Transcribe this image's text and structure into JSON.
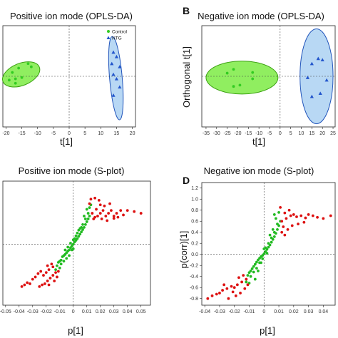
{
  "panel_labels": [
    "B",
    "D"
  ],
  "chart_data": [
    {
      "type": "scatter",
      "title": "Positive ion mode (OPLS-DA)",
      "xlabel": "t[1]",
      "ylabel": "",
      "xlim": [
        -21,
        21
      ],
      "ylim": [
        -8,
        8
      ],
      "xticks": [
        -20,
        -15,
        -10,
        -5,
        0,
        5,
        10,
        15,
        20
      ],
      "legend": {
        "placement": "top-right",
        "entries": [
          "Control",
          "NTG"
        ]
      },
      "ellipses": [
        {
          "series": "Control",
          "cx": -15.2,
          "cy": 0.3,
          "rx": 6.2,
          "ry": 1.75,
          "angle_deg": -22,
          "fill": "#90ee60",
          "stroke": "#3aa010"
        },
        {
          "series": "NTG",
          "cx": 14.8,
          "cy": -0.3,
          "rx": 2.0,
          "ry": 6.6,
          "angle_deg": -5,
          "fill": "#b8d8f4",
          "stroke": "#2255bb"
        }
      ],
      "series": [
        {
          "name": "Control",
          "marker": "circle",
          "color": "#33cc22",
          "points": [
            [
              -13,
              2.0
            ],
            [
              -16,
              1.3
            ],
            [
              -12,
              1.5
            ],
            [
              -18,
              0.6
            ],
            [
              -15,
              -0.2
            ],
            [
              -17,
              -0.4
            ],
            [
              -19,
              -0.6
            ],
            [
              -17,
              -1.1
            ]
          ]
        },
        {
          "name": "NTG",
          "marker": "triangle",
          "color": "#2255cc",
          "points": [
            [
              14,
              3.8
            ],
            [
              15,
              3.1
            ],
            [
              13.5,
              2.0
            ],
            [
              16,
              1.5
            ],
            [
              14,
              0.3
            ],
            [
              15,
              -0.4
            ],
            [
              16,
              -1.7
            ],
            [
              14,
              -3.0
            ]
          ]
        }
      ]
    },
    {
      "type": "scatter",
      "title": "Negative ion mode (OPLS-DA)",
      "xlabel": "t[1]",
      "ylabel": "Orthogonal t[1]",
      "xlim": [
        -37,
        26
      ],
      "ylim": [
        -8,
        8
      ],
      "xticks": [
        -35,
        -30,
        -25,
        -20,
        -15,
        -10,
        -5,
        0,
        5,
        10,
        15,
        20,
        25
      ],
      "ellipses": [
        {
          "series": "Control",
          "cx": -18,
          "cy": -0.2,
          "rx": 17,
          "ry": 2.6,
          "angle_deg": 0,
          "fill": "#90ee60",
          "stroke": "#3aa010"
        },
        {
          "series": "NTG",
          "cx": 17.2,
          "cy": 0,
          "rx": 7.8,
          "ry": 7.5,
          "angle_deg": 0,
          "fill": "#b8d8f4",
          "stroke": "#2255bb"
        }
      ],
      "series": [
        {
          "name": "Control",
          "marker": "circle",
          "color": "#33cc22",
          "points": [
            [
              -22,
              1.1
            ],
            [
              -25,
              0.5
            ],
            [
              -13,
              0.6
            ],
            [
              -13,
              -0.4
            ],
            [
              -19,
              -1.4
            ],
            [
              -22,
              -1.6
            ]
          ]
        },
        {
          "name": "NTG",
          "marker": "triangle",
          "color": "#2255cc",
          "points": [
            [
              18,
              2.8
            ],
            [
              20,
              2.6
            ],
            [
              15,
              2.0
            ],
            [
              13,
              -0.2
            ],
            [
              22,
              -0.6
            ],
            [
              19,
              -2.7
            ],
            [
              15,
              -3.2
            ]
          ]
        }
      ]
    },
    {
      "type": "scatter",
      "title": "Positive ion mode (S-plot)",
      "xlabel": "p[1]",
      "ylabel": "",
      "xlim": [
        -0.052,
        0.057
      ],
      "ylim": [
        -1.08,
        1.12
      ],
      "xticks": [
        -0.05,
        -0.04,
        -0.03,
        -0.02,
        -0.01,
        0,
        0.01,
        0.02,
        0.03,
        0.04,
        0.05
      ],
      "series": [
        {
          "name": "",
          "marker": "circle",
          "color": "#22bb22",
          "points": [
            [
              -0.012,
              -0.38
            ],
            [
              -0.011,
              -0.32
            ],
            [
              -0.01,
              -0.3
            ],
            [
              -0.009,
              -0.28
            ],
            [
              -0.008,
              -0.22
            ],
            [
              -0.007,
              -0.2
            ],
            [
              -0.006,
              -0.18
            ],
            [
              -0.005,
              -0.15
            ],
            [
              -0.004,
              -0.12
            ],
            [
              -0.003,
              -0.1
            ],
            [
              -0.002,
              -0.06
            ],
            [
              -0.001,
              -0.03
            ],
            [
              0,
              0.0
            ],
            [
              0.001,
              0.04
            ],
            [
              0.002,
              0.07
            ],
            [
              0.003,
              0.1
            ],
            [
              0.004,
              0.14
            ],
            [
              0.005,
              0.18
            ],
            [
              0.006,
              0.22
            ],
            [
              0.007,
              0.26
            ],
            [
              0.008,
              0.3
            ],
            [
              0.009,
              0.35
            ],
            [
              0.01,
              0.4
            ],
            [
              0.011,
              0.45
            ],
            [
              0.012,
              0.5
            ],
            [
              -0.009,
              -0.35
            ],
            [
              -0.007,
              -0.3
            ],
            [
              -0.005,
              -0.25
            ],
            [
              -0.003,
              -0.2
            ],
            [
              -0.001,
              -0.1
            ],
            [
              0.001,
              0.1
            ],
            [
              0.003,
              0.2
            ],
            [
              0.005,
              0.28
            ],
            [
              0.007,
              0.35
            ],
            [
              0.009,
              0.45
            ],
            [
              0.011,
              0.55
            ],
            [
              0.01,
              0.62
            ],
            [
              0.008,
              0.5
            ],
            [
              -0.006,
              -0.1
            ],
            [
              -0.004,
              -0.05
            ],
            [
              -0.002,
              0.02
            ],
            [
              0.002,
              0.15
            ],
            [
              0.004,
              0.25
            ],
            [
              0.006,
              0.3
            ],
            [
              0.012,
              0.65
            ],
            [
              0.013,
              0.7
            ],
            [
              -0.013,
              -0.45
            ],
            [
              -0.01,
              -0.42
            ],
            [
              0.0,
              0.08
            ],
            [
              0.0,
              -0.08
            ]
          ]
        },
        {
          "name": "",
          "marker": "circle",
          "color": "#dd1111",
          "points": [
            [
              0.015,
              0.45
            ],
            [
              0.018,
              0.5
            ],
            [
              0.02,
              0.55
            ],
            [
              0.022,
              0.6
            ],
            [
              0.024,
              0.5
            ],
            [
              0.026,
              0.55
            ],
            [
              0.028,
              0.6
            ],
            [
              0.03,
              0.5
            ],
            [
              0.032,
              0.55
            ],
            [
              0.035,
              0.6
            ],
            [
              0.037,
              0.52
            ],
            [
              0.04,
              0.6
            ],
            [
              0.045,
              0.58
            ],
            [
              0.05,
              0.55
            ],
            [
              0.017,
              0.62
            ],
            [
              0.02,
              0.7
            ],
            [
              0.023,
              0.68
            ],
            [
              0.027,
              0.72
            ],
            [
              0.012,
              0.72
            ],
            [
              0.013,
              0.8
            ],
            [
              0.016,
              0.82
            ],
            [
              0.019,
              0.78
            ],
            [
              0.014,
              0.55
            ],
            [
              0.016,
              0.48
            ],
            [
              0.021,
              0.45
            ],
            [
              0.025,
              0.42
            ],
            [
              0.03,
              0.46
            ],
            [
              0.033,
              0.48
            ],
            [
              -0.015,
              -0.4
            ],
            [
              -0.018,
              -0.45
            ],
            [
              -0.02,
              -0.5
            ],
            [
              -0.022,
              -0.55
            ],
            [
              -0.024,
              -0.48
            ],
            [
              -0.026,
              -0.52
            ],
            [
              -0.028,
              -0.58
            ],
            [
              -0.03,
              -0.62
            ],
            [
              -0.032,
              -0.7
            ],
            [
              -0.034,
              -0.68
            ],
            [
              -0.036,
              -0.72
            ],
            [
              -0.038,
              -0.75
            ],
            [
              -0.013,
              -0.5
            ],
            [
              -0.015,
              -0.55
            ],
            [
              -0.017,
              -0.6
            ],
            [
              -0.019,
              -0.65
            ],
            [
              -0.021,
              -0.7
            ],
            [
              -0.023,
              -0.72
            ],
            [
              -0.025,
              -0.75
            ],
            [
              -0.016,
              -0.35
            ],
            [
              -0.019,
              -0.38
            ],
            [
              -0.014,
              -0.65
            ],
            [
              -0.012,
              -0.58
            ],
            [
              -0.018,
              -0.72
            ],
            [
              -0.011,
              -0.48
            ]
          ]
        }
      ]
    },
    {
      "type": "scatter",
      "title": "Negative ion mode (S-plot)",
      "xlabel": "p[1]",
      "ylabel": "p(corr)[1]",
      "xlim": [
        -0.042,
        0.048
      ],
      "ylim": [
        -0.92,
        1.3
      ],
      "xticks": [
        -0.04,
        -0.03,
        -0.02,
        -0.01,
        0,
        0.01,
        0.02,
        0.03,
        0.04
      ],
      "yticks": [
        -0.8,
        -0.6,
        -0.4,
        -0.2,
        0,
        0.2,
        0.4,
        0.6,
        0.8,
        1.0,
        1.2
      ],
      "series": [
        {
          "name": "",
          "marker": "circle",
          "color": "#22bb22",
          "points": [
            [
              -0.011,
              -0.38
            ],
            [
              -0.01,
              -0.33
            ],
            [
              -0.009,
              -0.3
            ],
            [
              -0.008,
              -0.26
            ],
            [
              -0.007,
              -0.22
            ],
            [
              -0.006,
              -0.18
            ],
            [
              -0.005,
              -0.14
            ],
            [
              -0.004,
              -0.1
            ],
            [
              -0.003,
              -0.07
            ],
            [
              -0.002,
              -0.04
            ],
            [
              -0.001,
              -0.02
            ],
            [
              0,
              0.01
            ],
            [
              0.001,
              0.05
            ],
            [
              0.002,
              0.09
            ],
            [
              0.003,
              0.13
            ],
            [
              0.004,
              0.17
            ],
            [
              0.005,
              0.22
            ],
            [
              0.006,
              0.27
            ],
            [
              0.007,
              0.32
            ],
            [
              0.008,
              0.38
            ],
            [
              0.009,
              0.45
            ],
            [
              0.01,
              0.52
            ],
            [
              -0.009,
              -0.4
            ],
            [
              -0.007,
              -0.32
            ],
            [
              -0.005,
              -0.25
            ],
            [
              -0.003,
              -0.15
            ],
            [
              -0.001,
              -0.08
            ],
            [
              0.001,
              0.12
            ],
            [
              0.003,
              0.2
            ],
            [
              0.005,
              0.3
            ],
            [
              0.007,
              0.4
            ],
            [
              0.009,
              0.55
            ],
            [
              0.008,
              0.65
            ],
            [
              0.007,
              0.72
            ],
            [
              -0.006,
              -0.45
            ],
            [
              -0.012,
              -0.5
            ],
            [
              -0.01,
              -0.52
            ],
            [
              0.002,
              0.02
            ],
            [
              0.004,
              0.35
            ],
            [
              0.006,
              0.45
            ],
            [
              0.011,
              0.6
            ],
            [
              -0.004,
              -0.3
            ],
            [
              -0.002,
              -0.15
            ],
            [
              0.0,
              0.1
            ],
            [
              0.01,
              0.76
            ]
          ]
        },
        {
          "name": "",
          "marker": "circle",
          "color": "#dd1111",
          "points": [
            [
              0.012,
              0.6
            ],
            [
              0.015,
              0.65
            ],
            [
              0.018,
              0.7
            ],
            [
              0.02,
              0.72
            ],
            [
              0.022,
              0.68
            ],
            [
              0.025,
              0.7
            ],
            [
              0.028,
              0.66
            ],
            [
              0.03,
              0.72
            ],
            [
              0.033,
              0.7
            ],
            [
              0.036,
              0.67
            ],
            [
              0.04,
              0.65
            ],
            [
              0.045,
              0.7
            ],
            [
              0.014,
              0.75
            ],
            [
              0.017,
              0.8
            ],
            [
              0.011,
              0.85
            ],
            [
              0.013,
              0.5
            ],
            [
              0.016,
              0.45
            ],
            [
              0.019,
              0.52
            ],
            [
              0.023,
              0.55
            ],
            [
              0.027,
              0.58
            ],
            [
              0.012,
              0.4
            ],
            [
              0.014,
              0.35
            ],
            [
              -0.012,
              -0.45
            ],
            [
              -0.015,
              -0.5
            ],
            [
              -0.018,
              -0.55
            ],
            [
              -0.02,
              -0.6
            ],
            [
              -0.022,
              -0.58
            ],
            [
              -0.025,
              -0.62
            ],
            [
              -0.028,
              -0.65
            ],
            [
              -0.03,
              -0.7
            ],
            [
              -0.032,
              -0.72
            ],
            [
              -0.035,
              -0.75
            ],
            [
              -0.038,
              -0.8
            ],
            [
              -0.013,
              -0.62
            ],
            [
              -0.016,
              -0.7
            ],
            [
              -0.019,
              -0.75
            ],
            [
              -0.014,
              -0.38
            ],
            [
              -0.017,
              -0.42
            ],
            [
              -0.011,
              -0.55
            ],
            [
              -0.024,
              -0.8
            ],
            [
              -0.021,
              -0.68
            ],
            [
              -0.027,
              -0.55
            ]
          ]
        }
      ]
    }
  ]
}
